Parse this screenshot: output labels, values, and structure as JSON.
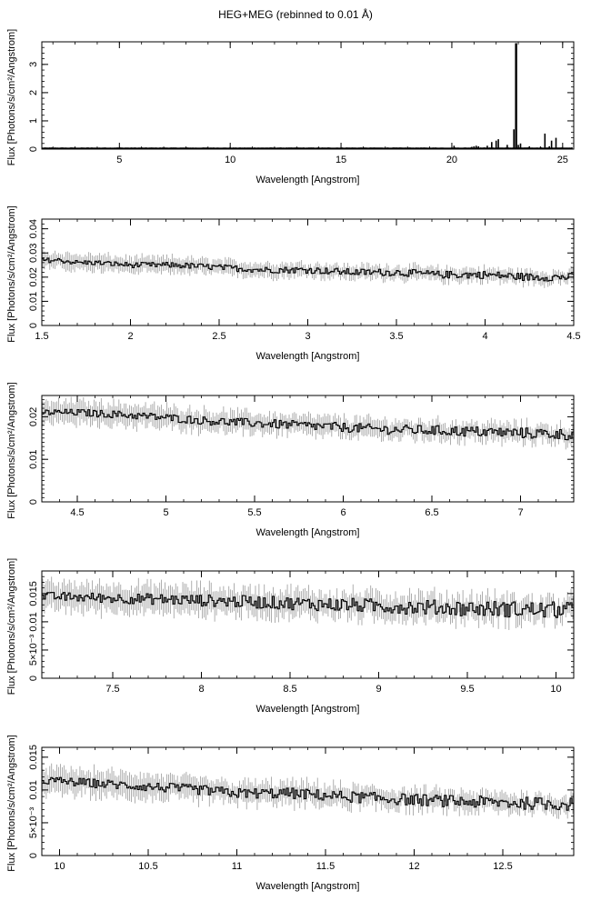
{
  "page": {
    "title": "HEG+MEG (rebinned to 0.01 Å)"
  },
  "colors": {
    "axis": "#000000",
    "data": "#000000",
    "error": "#9a9a9a"
  },
  "chart_data": [
    {
      "type": "line",
      "title": "",
      "xlabel": "Wavelength [Angstrom]",
      "ylabel": "Flux [Photons/s/cm²/Angstrom]",
      "xlim": [
        1.5,
        25.5
      ],
      "ylim": [
        0,
        3.8
      ],
      "xticks": [
        5,
        10,
        15,
        20,
        25
      ],
      "xtick_labels": [
        "5",
        "10",
        "15",
        "20",
        "25"
      ],
      "yticks": [
        0,
        1,
        2,
        3
      ],
      "ytick_labels": [
        "0",
        "1",
        "2",
        "3"
      ],
      "series": [
        {
          "x": [
            1.5,
            3,
            5,
            8,
            12,
            16,
            18,
            19.5,
            20.0,
            20.1,
            20.5,
            20.9,
            21.0,
            21.1,
            21.2,
            21.6,
            21.8,
            22.0,
            22.1,
            22.5,
            22.8,
            22.9,
            23.0,
            23.1,
            23.3,
            23.5,
            24.0,
            24.2,
            24.4,
            24.5,
            24.7,
            25.0,
            25.5
          ],
          "y": [
            0.02,
            0.02,
            0.02,
            0.02,
            0.015,
            0.02,
            0.02,
            0.03,
            0.02,
            0.12,
            0.04,
            0.08,
            0.1,
            0.12,
            0.1,
            0.12,
            0.25,
            0.3,
            0.35,
            0.15,
            0.7,
            3.75,
            0.15,
            0.2,
            0.04,
            0.1,
            0.08,
            0.55,
            0.1,
            0.3,
            0.4,
            0.03,
            0.03
          ]
        }
      ]
    },
    {
      "type": "line",
      "title": "",
      "xlabel": "Wavelength [Angstrom]",
      "ylabel": "Flux [Photons/s/cm²/Angstrom]",
      "xlim": [
        1.5,
        4.5
      ],
      "ylim": [
        0,
        0.044
      ],
      "xticks": [
        1.5,
        2,
        2.5,
        3,
        3.5,
        4,
        4.5
      ],
      "xtick_labels": [
        "1.5",
        "2",
        "2.5",
        "3",
        "3.5",
        "4",
        "4.5"
      ],
      "yticks": [
        0,
        0.01,
        0.02,
        0.03,
        0.04
      ],
      "ytick_labels": [
        "0",
        "0.01",
        "0.02",
        "0.03",
        "0.04"
      ],
      "series": [
        {
          "x": [
            1.5,
            1.6,
            1.7,
            1.8,
            2.0,
            2.25,
            2.5,
            2.75,
            3.0,
            3.25,
            3.5,
            3.75,
            4.0,
            4.25,
            4.5
          ],
          "y": [
            0.027,
            0.027,
            0.026,
            0.026,
            0.025,
            0.025,
            0.024,
            0.023,
            0.023,
            0.022,
            0.022,
            0.021,
            0.021,
            0.02,
            0.02
          ]
        }
      ]
    },
    {
      "type": "line",
      "title": "",
      "xlabel": "Wavelength [Angstrom]",
      "ylabel": "Flux [Photons/s/cm²/Angstrom]",
      "xlim": [
        4.3,
        7.3
      ],
      "ylim": [
        0,
        0.025
      ],
      "xticks": [
        4.5,
        5,
        5.5,
        6,
        6.5,
        7
      ],
      "xtick_labels": [
        "4.5",
        "5",
        "5.5",
        "6",
        "6.5",
        "7"
      ],
      "yticks": [
        0,
        0.01,
        0.02
      ],
      "ytick_labels": [
        "0",
        "0.01",
        "0.02"
      ],
      "series": [
        {
          "x": [
            4.3,
            4.5,
            4.75,
            5.0,
            5.25,
            5.5,
            5.75,
            6.0,
            6.25,
            6.5,
            6.75,
            7.0,
            7.3
          ],
          "y": [
            0.021,
            0.021,
            0.0205,
            0.0198,
            0.019,
            0.0185,
            0.018,
            0.0175,
            0.017,
            0.0168,
            0.0165,
            0.0162,
            0.0158
          ]
        }
      ]
    },
    {
      "type": "line",
      "title": "",
      "xlabel": "Wavelength [Angstrom]",
      "ylabel": "Flux [Photons/s/cm²/Angstrom]",
      "xlim": [
        7.1,
        10.1
      ],
      "ylim": [
        0,
        0.019
      ],
      "xticks": [
        7.5,
        8,
        8.5,
        9,
        9.5,
        10
      ],
      "xtick_labels": [
        "7.5",
        "8",
        "8.5",
        "9",
        "9.5",
        "10"
      ],
      "yticks": [
        0,
        0.005,
        0.01,
        0.015
      ],
      "ytick_labels": [
        "0",
        "5×10⁻³",
        "0.01",
        "0.015"
      ],
      "series": [
        {
          "x": [
            7.1,
            7.5,
            8.0,
            8.5,
            9.0,
            9.5,
            10.1
          ],
          "y": [
            0.0145,
            0.0142,
            0.0138,
            0.0133,
            0.0128,
            0.0124,
            0.012
          ]
        }
      ]
    },
    {
      "type": "line",
      "title": "",
      "xlabel": "Wavelength [Angstrom]",
      "ylabel": "Flux [Photons/s/cm²/Angstrom]",
      "xlim": [
        9.9,
        12.9
      ],
      "ylim": [
        0,
        0.0165
      ],
      "xticks": [
        10,
        10.5,
        11,
        11.5,
        12,
        12.5
      ],
      "xtick_labels": [
        "10",
        "10.5",
        "11",
        "11.5",
        "12",
        "12.5"
      ],
      "yticks": [
        0,
        0.005,
        0.01,
        0.015
      ],
      "ytick_labels": [
        "0",
        "5×10⁻³",
        "0.01",
        "0.015"
      ],
      "series": [
        {
          "x": [
            9.9,
            10.2,
            10.5,
            10.8,
            11.0,
            11.3,
            11.6,
            12.0,
            12.3,
            12.6,
            12.9
          ],
          "y": [
            0.0115,
            0.011,
            0.0105,
            0.01,
            0.0095,
            0.0095,
            0.009,
            0.0085,
            0.0082,
            0.008,
            0.0078
          ]
        }
      ]
    }
  ]
}
